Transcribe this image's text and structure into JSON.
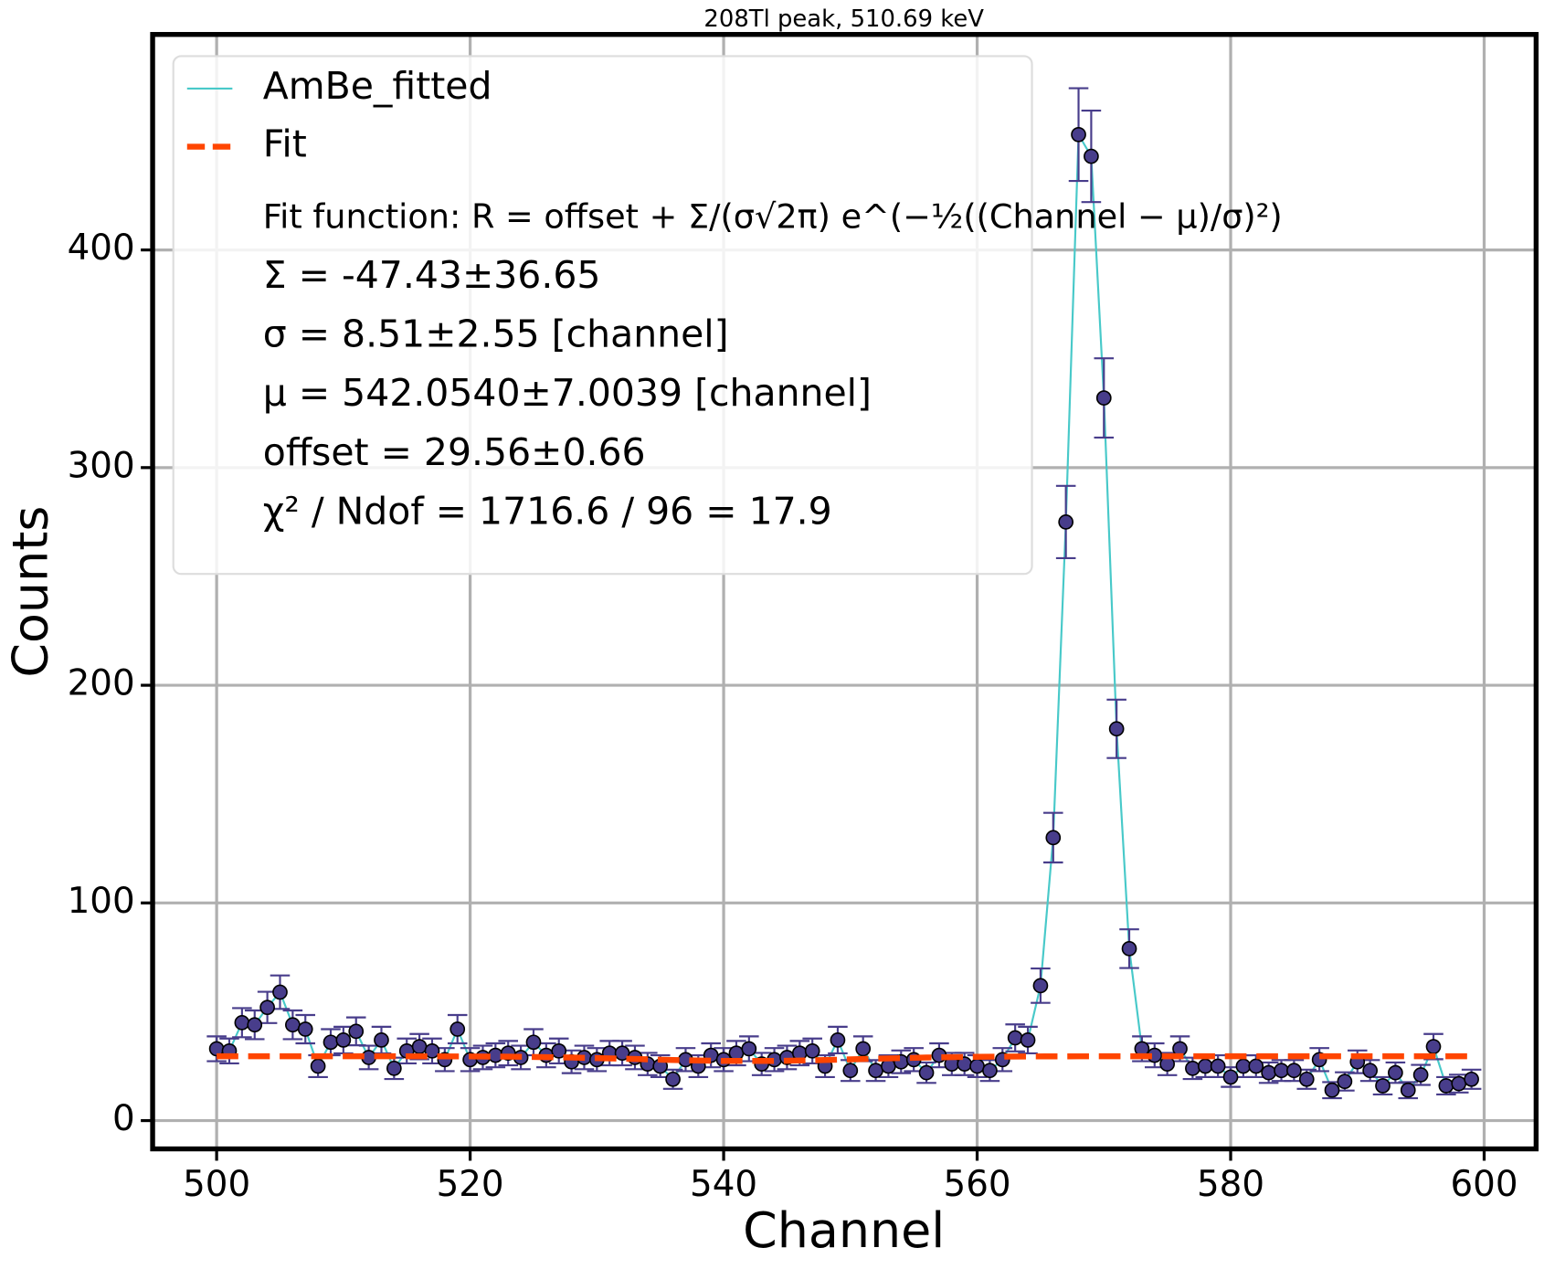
{
  "chart_data": {
    "type": "scatter",
    "title": "208Tl peak, 510.69 keV",
    "xlabel": "Channel",
    "ylabel": "Counts",
    "xlim": [
      494.95,
      604.1
    ],
    "ylim": [
      -13,
      499
    ],
    "xticks": [
      500,
      520,
      540,
      560,
      580,
      600
    ],
    "yticks": [
      0,
      100,
      200,
      300,
      400
    ],
    "grid": true,
    "legend": "upper left",
    "x": [
      500,
      501,
      502,
      503,
      504,
      505,
      506,
      507,
      508,
      509,
      510,
      511,
      512,
      513,
      514,
      515,
      516,
      517,
      518,
      519,
      520,
      521,
      522,
      523,
      524,
      525,
      526,
      527,
      528,
      529,
      530,
      531,
      532,
      533,
      534,
      535,
      536,
      537,
      538,
      539,
      540,
      541,
      542,
      543,
      544,
      545,
      546,
      547,
      548,
      549,
      550,
      551,
      552,
      553,
      554,
      555,
      556,
      557,
      558,
      559,
      560,
      561,
      562,
      563,
      564,
      565,
      566,
      567,
      568,
      569,
      570,
      571,
      572,
      573,
      574,
      575,
      576,
      577,
      578,
      579,
      580,
      581,
      582,
      583,
      584,
      585,
      586,
      587,
      588,
      589,
      590,
      591,
      592,
      593,
      594,
      595,
      596,
      597,
      598,
      599
    ],
    "series": [
      {
        "name": "AmBe_fitted",
        "color": "#48c9c9",
        "marker_color": "#483d8b",
        "values": [
          33,
          32,
          45,
          44,
          52,
          59,
          44,
          42,
          25,
          36,
          37,
          41,
          29,
          37,
          24,
          32,
          34,
          32,
          28,
          42,
          28,
          29,
          30,
          31,
          29,
          36,
          30,
          32,
          27,
          29,
          28,
          31,
          31,
          29,
          26,
          25,
          19,
          28,
          25,
          30,
          28,
          31,
          33,
          26,
          28,
          29,
          31,
          32,
          25,
          37,
          23,
          33,
          23,
          25,
          27,
          28,
          22,
          30,
          26,
          26,
          25,
          23,
          28,
          38,
          37,
          62,
          130,
          275,
          453,
          443,
          332,
          180,
          79,
          33,
          30,
          26,
          33,
          24,
          25,
          25,
          20,
          25,
          25,
          22,
          23,
          23,
          19,
          28,
          14,
          18,
          27,
          23,
          16,
          22,
          14,
          21,
          34,
          16,
          17,
          19
        ],
        "errors": [
          5.7,
          5.7,
          6.7,
          6.6,
          7.2,
          7.7,
          6.6,
          6.5,
          5,
          6,
          6.1,
          6.4,
          5.4,
          6.1,
          4.9,
          5.7,
          5.8,
          5.7,
          5.3,
          6.5,
          5.3,
          5.4,
          5.5,
          5.6,
          5.4,
          6,
          5.5,
          5.7,
          5.2,
          5.4,
          5.3,
          5.6,
          5.6,
          5.4,
          5.1,
          5,
          4.4,
          5.3,
          5,
          5.5,
          5.3,
          5.6,
          5.7,
          5.1,
          5.3,
          5.4,
          5.6,
          5.7,
          5,
          6.1,
          4.8,
          5.7,
          4.8,
          5,
          5.2,
          5.3,
          4.7,
          5.5,
          5.1,
          5.1,
          5,
          4.8,
          5.3,
          6.2,
          6.1,
          7.9,
          11.4,
          16.6,
          21.3,
          21,
          18.2,
          13.4,
          8.9,
          5.7,
          5.5,
          5.1,
          5.7,
          4.9,
          5,
          5,
          4.5,
          5,
          5,
          4.7,
          4.8,
          4.8,
          4.4,
          5.3,
          3.7,
          4.2,
          5.2,
          4.8,
          4,
          4.7,
          3.7,
          4.6,
          5.8,
          4,
          4.1,
          4.4
        ]
      },
      {
        "name": "Fit",
        "color": "#ff4500",
        "dashed": true,
        "x": [
          500,
          504,
          508,
          512,
          516,
          520,
          524,
          528,
          532,
          536,
          540,
          544,
          548,
          552,
          556,
          560,
          564,
          568,
          572,
          576,
          580,
          584,
          588,
          592,
          596,
          599
        ],
        "values": [
          29.56,
          29.56,
          29.56,
          29.56,
          29.54,
          29.48,
          29.33,
          28.99,
          28.45,
          27.83,
          27.4,
          27.4,
          27.82,
          28.44,
          28.98,
          29.32,
          29.48,
          29.54,
          29.56,
          29.56,
          29.56,
          29.56,
          29.56,
          29.56,
          29.56,
          29.56
        ]
      }
    ],
    "annotations": [
      "Fit function: R = offset + Σ/(σ√2π) e^(−½((Channel − μ)/σ)²)",
      "Σ = -47.43±36.65",
      "σ = 8.51±2.55 [channel]",
      "μ = 542.0540±7.0039 [channel]",
      "offset = 29.56±0.66",
      "χ² / Ndof = 1716.6 / 96 = 17.9"
    ]
  }
}
